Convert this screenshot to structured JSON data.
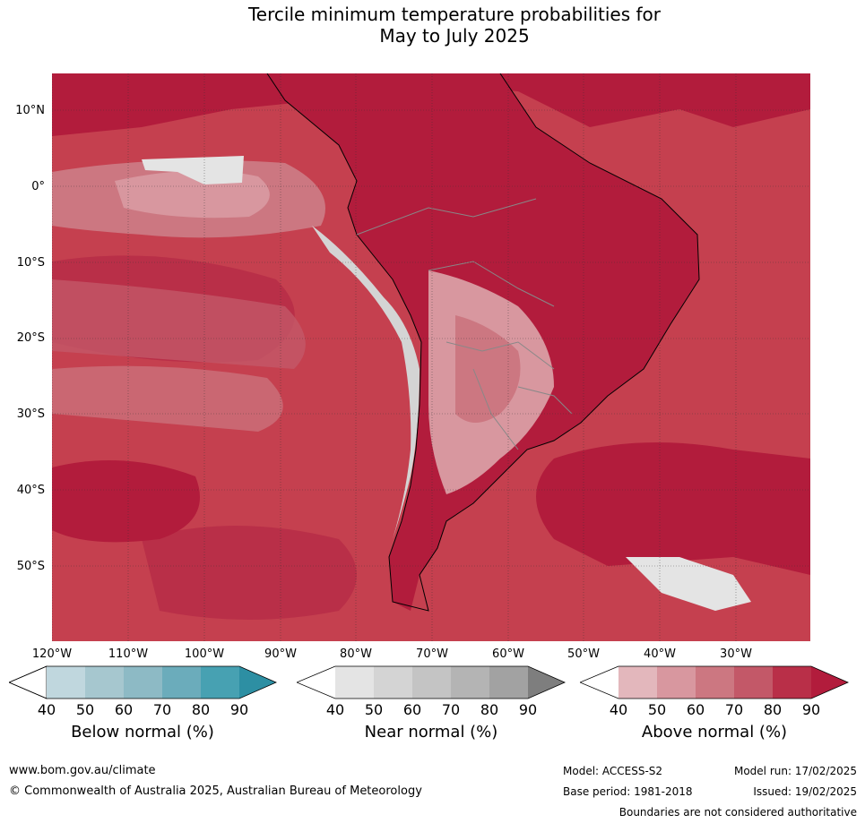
{
  "title_line1": "Tercile minimum temperature probabilities for",
  "title_line2": "May to July 2025",
  "map": {
    "lat_labels": [
      "10°N",
      "0°",
      "10°S",
      "20°S",
      "30°S",
      "40°S",
      "50°S"
    ],
    "lon_labels": [
      "120°W",
      "110°W",
      "100°W",
      "90°W",
      "80°W",
      "70°W",
      "60°W",
      "50°W",
      "40°W",
      "30°W"
    ]
  },
  "colorbars": [
    {
      "title": "Below normal (%)",
      "ticks": [
        "40",
        "50",
        "60",
        "70",
        "80",
        "90"
      ],
      "colors": [
        "#c0d7de",
        "#a6c7cf",
        "#8dbac5",
        "#6bacbb",
        "#47a1b2",
        "#2d8fa3"
      ]
    },
    {
      "title": "Near normal (%)",
      "ticks": [
        "40",
        "50",
        "60",
        "70",
        "80",
        "90"
      ],
      "colors": [
        "#e4e4e4",
        "#d4d4d4",
        "#c4c4c4",
        "#b4b4b4",
        "#a2a2a2",
        "#7e7e7e"
      ]
    },
    {
      "title": "Above normal (%)",
      "ticks": [
        "40",
        "50",
        "60",
        "70",
        "80",
        "90"
      ],
      "colors": [
        "#e3b7bc",
        "#d8979f",
        "#cc7781",
        "#c35868",
        "#b92f48",
        "#b21c3c"
      ]
    }
  ],
  "footer": {
    "website": "www.bom.gov.au/climate",
    "copyright": "© Commonwealth of Australia 2025, Australian Bureau of Meteorology",
    "model": "Model: ACCESS-S2",
    "base_period": "Base period: 1981-2018",
    "model_run": "Model run: 17/02/2025",
    "issued": "Issued: 19/02/2025",
    "disclaimer": "Boundaries are not considered authoritative"
  }
}
